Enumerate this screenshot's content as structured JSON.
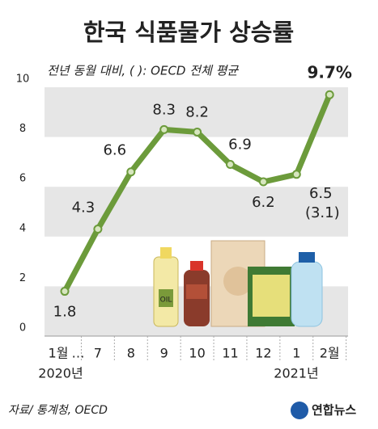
{
  "chart_data": {
    "type": "line",
    "title": "한국 식품물가 상승률",
    "subtitle": "전년 동월 대비, (  ): OECD 전체 평균",
    "categories": [
      "1월",
      "7",
      "8",
      "9",
      "10",
      "11",
      "12",
      "1",
      "2월"
    ],
    "gap_mark": "…",
    "year_labels": [
      "2020년",
      "2021년"
    ],
    "series": [
      {
        "name": "한국 식품물가 상승률",
        "color": "#6c9b3b",
        "values": [
          1.8,
          4.3,
          6.6,
          8.3,
          8.2,
          6.9,
          6.2,
          6.5,
          9.7
        ],
        "value_labels": [
          "1.8",
          "4.3",
          "6.6",
          "8.3",
          "8.2",
          "6.9",
          "6.2",
          "6.5",
          "9.7%"
        ]
      }
    ],
    "oecd_note": "(3.1)",
    "ylim": [
      0,
      10
    ],
    "yticks": [
      0,
      2,
      4,
      6,
      8,
      10
    ],
    "grid": true,
    "source": "자료/ 통계청, OECD",
    "logo": "연합뉴스"
  }
}
